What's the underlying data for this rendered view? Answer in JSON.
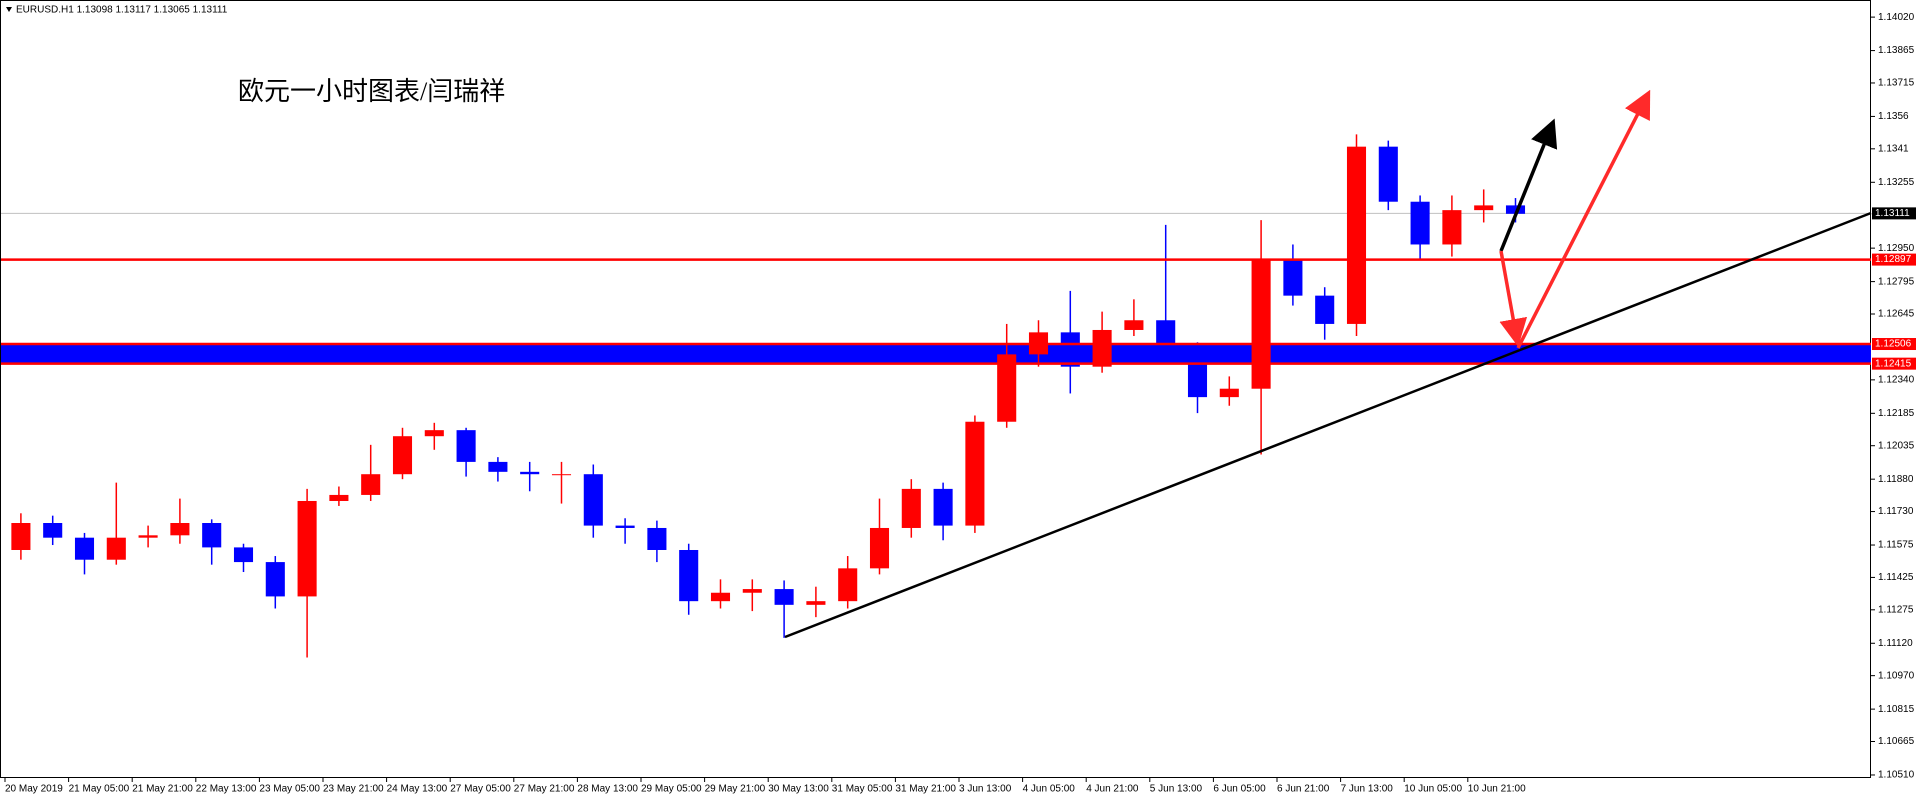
{
  "chart_data": {
    "type": "candlestick",
    "title": "EURUSD.H1  1.13098 1.13117 1.13065 1.13111",
    "annotation": "欧元一小时图表/闫瑞祥",
    "categories": [
      "20 May 2019",
      null,
      "21 May 05:00",
      null,
      "21 May 21:00",
      null,
      "22 May 13:00",
      null,
      "23 May 05:00",
      null,
      "23 May 21:00",
      null,
      "24 May 13:00",
      null,
      "27 May 05:00",
      null,
      "27 May 21:00",
      null,
      "28 May 13:00",
      null,
      "29 May 05:00",
      null,
      "29 May 21:00",
      null,
      "30 May 13:00",
      null,
      "31 May 05:00",
      null,
      "31 May 21:00",
      null,
      "3 Jun 13:00",
      null,
      "4 Jun 05:00",
      null,
      "4 Jun 21:00",
      null,
      "5 Jun 13:00",
      null,
      "6 Jun 05:00",
      null,
      "6 Jun 21:00",
      null,
      "7 Jun 13:00",
      null,
      "10 Jun 05:00",
      null,
      "10 Jun 21:00",
      null
    ],
    "open": [
      1.11552,
      1.11677,
      1.11609,
      1.11507,
      1.11609,
      1.1162,
      1.11677,
      1.11564,
      1.11496,
      1.11337,
      1.11779,
      1.11807,
      1.11903,
      1.12079,
      1.12107,
      1.1196,
      1.11914,
      1.11903,
      1.11903,
      1.11665,
      1.11654,
      1.11552,
      1.11315,
      1.11354,
      1.11371,
      1.11298,
      1.11315,
      1.11467,
      1.11654,
      1.11835,
      1.11665,
      1.12146,
      1.12458,
      1.1256,
      1.12401,
      1.12571,
      1.12616,
      1.12486,
      1.1226,
      1.12299,
      1.12899,
      1.1273,
      1.12599,
      1.1342,
      1.13165,
      1.12967,
      1.13126,
      1.13148
    ],
    "high": [
      1.11722,
      1.11711,
      1.11631,
      1.11864,
      1.11665,
      1.1179,
      1.11694,
      1.11581,
      1.11524,
      1.11835,
      1.11846,
      1.12039,
      1.12118,
      1.12141,
      1.12118,
      1.11982,
      1.1196,
      1.1196,
      1.11948,
      1.11699,
      1.11688,
      1.11581,
      1.11416,
      1.11416,
      1.11411,
      1.11382,
      1.11524,
      1.1179,
      1.1188,
      1.11864,
      1.12175,
      1.12599,
      1.12616,
      1.12752,
      1.12656,
      1.12713,
      1.13058,
      1.12514,
      1.12356,
      1.1308,
      1.12967,
      1.12769,
      1.13477,
      1.13448,
      1.13194,
      1.13194,
      1.13222,
      1.13182
    ],
    "low": [
      1.11507,
      1.11575,
      1.11439,
      1.11484,
      1.11564,
      1.11581,
      1.11484,
      1.1145,
      1.11281,
      1.11054,
      1.11756,
      1.11779,
      1.1188,
      1.12016,
      1.11892,
      1.11869,
      1.11824,
      1.11767,
      1.11609,
      1.11581,
      1.11496,
      1.11252,
      1.11281,
      1.11269,
      1.11145,
      1.11241,
      1.11281,
      1.11439,
      1.11609,
      1.11597,
      1.11631,
      1.12118,
      1.12401,
      1.12277,
      1.12373,
      1.12543,
      1.12458,
      1.12186,
      1.1222,
      1.11994,
      1.12684,
      1.12526,
      1.12543,
      1.13126,
      1.12899,
      1.12911,
      1.13069,
      1.13069
    ],
    "close": [
      1.11677,
      1.11609,
      1.11507,
      1.11609,
      1.1162,
      1.11677,
      1.11564,
      1.11496,
      1.11337,
      1.11779,
      1.11807,
      1.11903,
      1.12079,
      1.12107,
      1.1196,
      1.11914,
      1.11903,
      1.11903,
      1.11665,
      1.11654,
      1.11552,
      1.11315,
      1.11354,
      1.11371,
      1.11298,
      1.11315,
      1.11467,
      1.11654,
      1.11835,
      1.11665,
      1.12146,
      1.12458,
      1.1256,
      1.12401,
      1.12571,
      1.12616,
      1.12486,
      1.1226,
      1.12299,
      1.12899,
      1.1273,
      1.12599,
      1.1342,
      1.13165,
      1.12967,
      1.13126,
      1.13148,
      1.13109
    ],
    "up_color": "#ff0000",
    "down_color": "#0000ff",
    "ylim": [
      1.10496,
      1.1409
    ],
    "yticks": [
      {
        "value": 1.1402,
        "label": "1.14020"
      },
      1.13865,
      1.13715,
      1.1356,
      1.1341,
      1.13255,
      {
        "value": 1.1295,
        "label": "1.12950"
      },
      1.12795,
      1.12645,
      {
        "value": 1.1234,
        "label": "1.12340"
      },
      1.12185,
      1.12035,
      {
        "value": 1.1188,
        "label": "1.11880"
      },
      {
        "value": 1.1173,
        "label": "1.11730"
      },
      1.11575,
      1.11425,
      1.11275,
      {
        "value": 1.1112,
        "label": "1.11120"
      },
      {
        "value": 1.1097,
        "label": "1.10970"
      },
      1.10815,
      1.10665,
      {
        "value": 1.1051,
        "label": "1.10510"
      }
    ],
    "levels": [
      {
        "value": 1.12897,
        "color": "#ff0000"
      },
      {
        "value": 1.12506,
        "color": "#ff0000"
      },
      {
        "value": 1.12415,
        "color": "#ff0000"
      }
    ],
    "band_color": "#0000ff",
    "last_price": {
      "value": 1.13111,
      "color": "#c0c0c0"
    },
    "grid": false
  }
}
